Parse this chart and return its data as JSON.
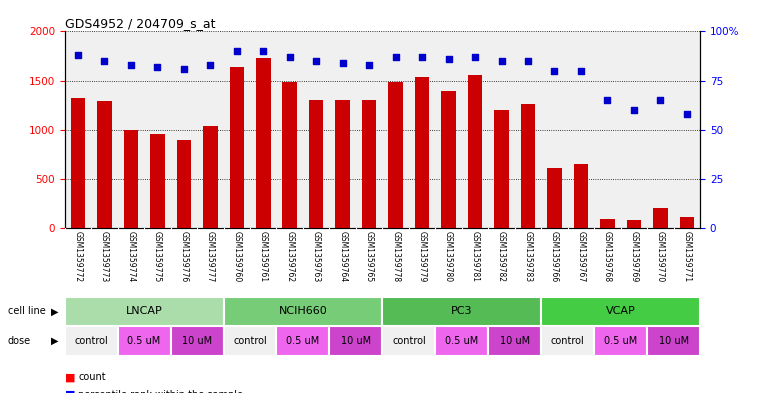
{
  "title": "GDS4952 / 204709_s_at",
  "samples": [
    "GSM1359772",
    "GSM1359773",
    "GSM1359774",
    "GSM1359775",
    "GSM1359776",
    "GSM1359777",
    "GSM1359760",
    "GSM1359761",
    "GSM1359762",
    "GSM1359763",
    "GSM1359764",
    "GSM1359765",
    "GSM1359778",
    "GSM1359779",
    "GSM1359780",
    "GSM1359781",
    "GSM1359782",
    "GSM1359783",
    "GSM1359766",
    "GSM1359767",
    "GSM1359768",
    "GSM1359769",
    "GSM1359770",
    "GSM1359771"
  ],
  "counts": [
    1320,
    1295,
    1000,
    960,
    890,
    1040,
    1640,
    1730,
    1490,
    1300,
    1300,
    1300,
    1490,
    1540,
    1390,
    1560,
    1200,
    1260,
    610,
    650,
    90,
    80,
    200,
    110
  ],
  "percentiles": [
    88,
    85,
    83,
    82,
    81,
    83,
    90,
    90,
    87,
    85,
    84,
    83,
    87,
    87,
    86,
    87,
    85,
    85,
    80,
    80,
    65,
    60,
    65,
    58
  ],
  "cell_line_groups": [
    {
      "name": "LNCAP",
      "start": 0,
      "end": 6
    },
    {
      "name": "NCIH660",
      "start": 6,
      "end": 12
    },
    {
      "name": "PC3",
      "start": 12,
      "end": 18
    },
    {
      "name": "VCAP",
      "start": 18,
      "end": 24
    }
  ],
  "cell_line_colors": {
    "LNCAP": "#aaddaa",
    "NCIH660": "#77cc77",
    "PC3": "#55bb55",
    "VCAP": "#44cc44"
  },
  "dose_groups": [
    {
      "label": "control",
      "start": 0,
      "end": 2
    },
    {
      "label": "0.5 uM",
      "start": 2,
      "end": 4
    },
    {
      "label": "10 uM",
      "start": 4,
      "end": 6
    },
    {
      "label": "control",
      "start": 6,
      "end": 8
    },
    {
      "label": "0.5 uM",
      "start": 8,
      "end": 10
    },
    {
      "label": "10 uM",
      "start": 10,
      "end": 12
    },
    {
      "label": "control",
      "start": 12,
      "end": 14
    },
    {
      "label": "0.5 uM",
      "start": 14,
      "end": 16
    },
    {
      "label": "10 uM",
      "start": 16,
      "end": 18
    },
    {
      "label": "control",
      "start": 18,
      "end": 20
    },
    {
      "label": "0.5 uM",
      "start": 20,
      "end": 22
    },
    {
      "label": "10 uM",
      "start": 22,
      "end": 24
    }
  ],
  "dose_colors": {
    "control": "#f0f0f0",
    "0.5 uM": "#ee66ee",
    "10 uM": "#cc44cc"
  },
  "bar_color": "#cc0000",
  "dot_color": "#0000cc",
  "ylim_left": [
    0,
    2000
  ],
  "ylim_right": [
    0,
    100
  ],
  "yticks_left": [
    0,
    500,
    1000,
    1500,
    2000
  ],
  "yticks_right": [
    0,
    25,
    50,
    75,
    100
  ],
  "chart_bg": "#e8e8e8",
  "label_row_bg": "#d0d0d0"
}
